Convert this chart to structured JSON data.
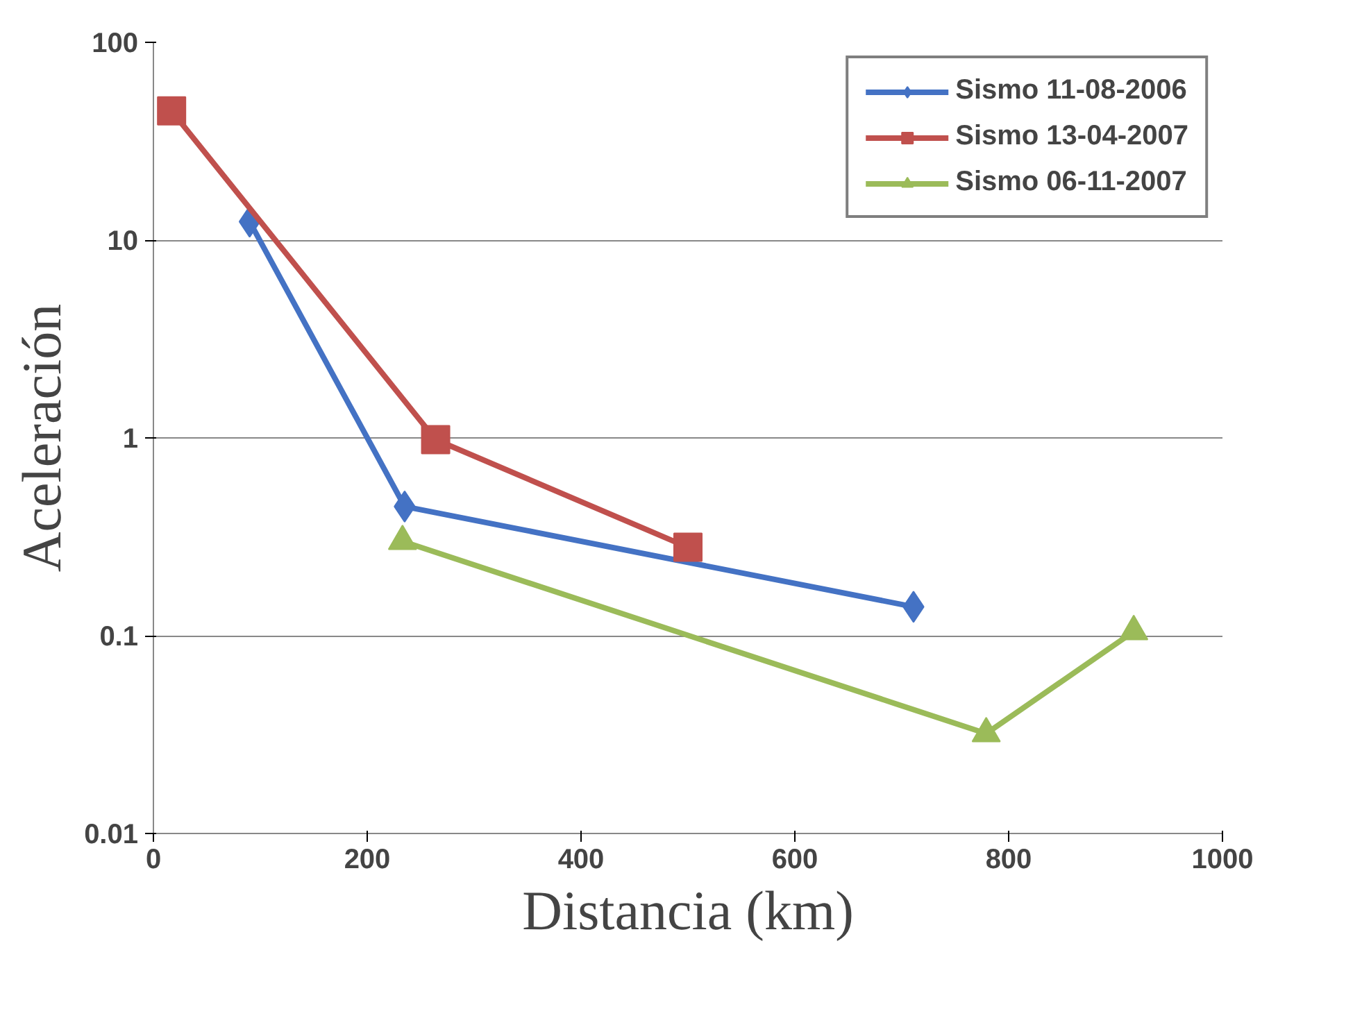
{
  "chart_data": {
    "type": "line",
    "xlabel": "Distancia (km)",
    "ylabel": "Aceleración",
    "log": "y",
    "grid": "y",
    "legend": "top right",
    "xlim": [
      0,
      1000
    ],
    "xticks": [
      0,
      200,
      400,
      600,
      800,
      1000
    ],
    "ylim": [
      0.01,
      100
    ],
    "yticks": [
      0.01,
      0.1,
      1,
      10,
      100
    ],
    "series": [
      {
        "name": "Sismo 11-08-2006",
        "color": "#4472c4",
        "marker": "diamond",
        "x": [
          90,
          235,
          711
        ],
        "values": [
          12.4,
          0.45,
          0.14
        ]
      },
      {
        "name": "Sismo 13-04-2007",
        "color": "#c0504d",
        "marker": "square",
        "x": [
          17,
          264,
          500
        ],
        "values": [
          45,
          0.98,
          0.28
        ]
      },
      {
        "name": "Sismo 06-11-2007",
        "color": "#9bbb59",
        "marker": "triangle",
        "x": [
          233,
          779,
          917
        ],
        "values": [
          0.3,
          0.032,
          0.105
        ]
      }
    ]
  }
}
